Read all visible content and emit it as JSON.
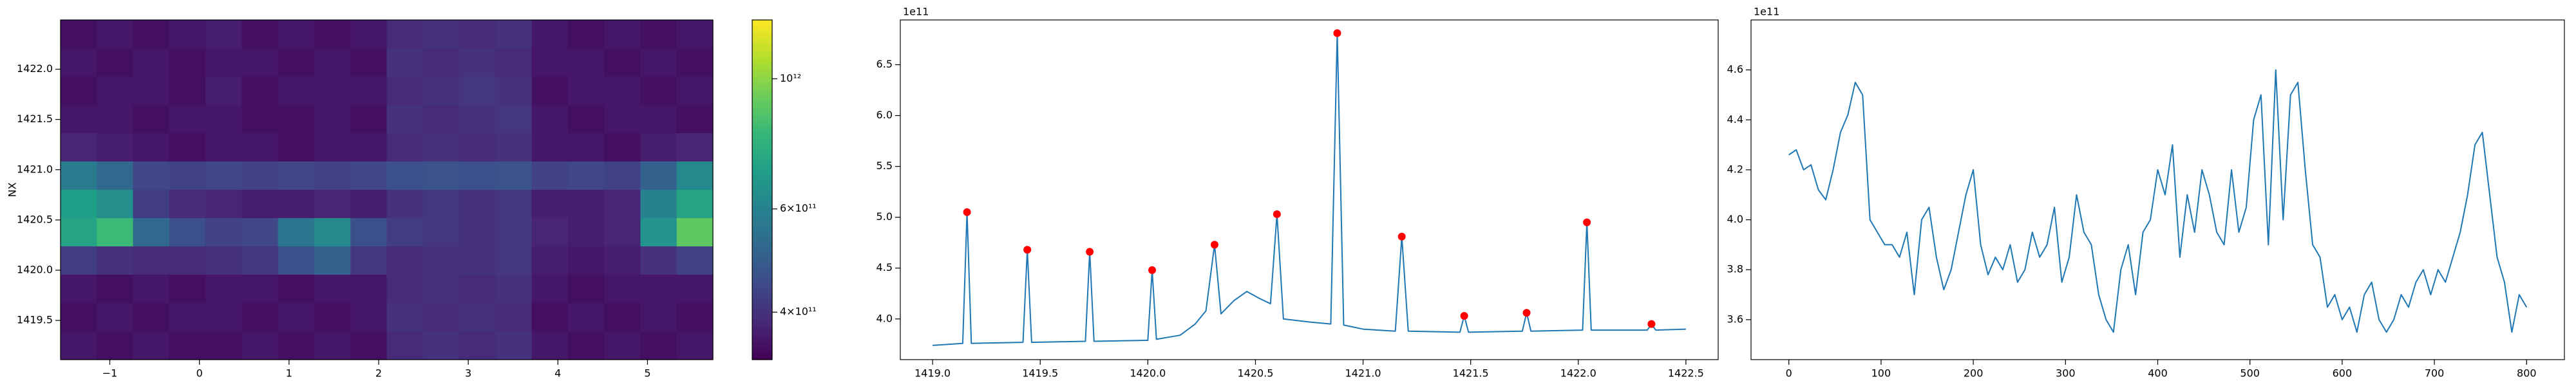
{
  "chart_data": [
    {
      "type": "heatmap",
      "ylabel": "NX",
      "colormap": "viridis",
      "color_scale": "log",
      "xlim": [
        -1.55,
        5.73
      ],
      "ylim": [
        1419.11,
        1422.49
      ],
      "xticks": [
        {
          "value": -1,
          "label": "−1"
        },
        0,
        1,
        2,
        3,
        4,
        5
      ],
      "yticks": [
        1419.5,
        {
          "value": 1420.0,
          "label": "1420.0"
        },
        1420.5,
        {
          "value": 1421.0,
          "label": "1421.0"
        },
        1421.5,
        {
          "value": 1422.0,
          "label": "1422.0"
        }
      ],
      "zlim": [
        332000000000.0,
        1260000000000.0
      ],
      "zticks": [
        {
          "value": 400000000000.0,
          "label": "4×10¹¹"
        },
        {
          "value": 600000000000.0,
          "label": "6×10¹¹"
        },
        {
          "value": 1000000000000.0,
          "label": "10¹²"
        }
      ],
      "z": [
        [
          350000000000.0,
          360000000000.0,
          350000000000.0,
          360000000000.0,
          370000000000.0,
          350000000000.0,
          360000000000.0,
          350000000000.0,
          360000000000.0,
          390000000000.0,
          400000000000.0,
          390000000000.0,
          400000000000.0,
          360000000000.0,
          350000000000.0,
          360000000000.0,
          350000000000.0,
          360000000000.0
        ],
        [
          360000000000.0,
          350000000000.0,
          360000000000.0,
          350000000000.0,
          360000000000.0,
          360000000000.0,
          350000000000.0,
          360000000000.0,
          350000000000.0,
          400000000000.0,
          390000000000.0,
          400000000000.0,
          390000000000.0,
          360000000000.0,
          360000000000.0,
          350000000000.0,
          360000000000.0,
          350000000000.0
        ],
        [
          350000000000.0,
          360000000000.0,
          360000000000.0,
          350000000000.0,
          370000000000.0,
          350000000000.0,
          360000000000.0,
          360000000000.0,
          360000000000.0,
          390000000000.0,
          400000000000.0,
          410000000000.0,
          400000000000.0,
          350000000000.0,
          360000000000.0,
          360000000000.0,
          350000000000.0,
          360000000000.0
        ],
        [
          360000000000.0,
          360000000000.0,
          350000000000.0,
          360000000000.0,
          360000000000.0,
          350000000000.0,
          350000000000.0,
          360000000000.0,
          350000000000.0,
          400000000000.0,
          390000000000.0,
          400000000000.0,
          410000000000.0,
          360000000000.0,
          350000000000.0,
          360000000000.0,
          360000000000.0,
          350000000000.0
        ],
        [
          380000000000.0,
          370000000000.0,
          360000000000.0,
          350000000000.0,
          360000000000.0,
          360000000000.0,
          350000000000.0,
          360000000000.0,
          360000000000.0,
          390000000000.0,
          400000000000.0,
          390000000000.0,
          400000000000.0,
          360000000000.0,
          360000000000.0,
          350000000000.0,
          370000000000.0,
          380000000000.0
        ],
        [
          580000000000.0,
          520000000000.0,
          440000000000.0,
          430000000000.0,
          440000000000.0,
          430000000000.0,
          440000000000.0,
          430000000000.0,
          440000000000.0,
          460000000000.0,
          470000000000.0,
          460000000000.0,
          470000000000.0,
          430000000000.0,
          440000000000.0,
          430000000000.0,
          500000000000.0,
          620000000000.0
        ],
        [
          700000000000.0,
          640000000000.0,
          420000000000.0,
          390000000000.0,
          380000000000.0,
          370000000000.0,
          370000000000.0,
          380000000000.0,
          370000000000.0,
          400000000000.0,
          410000000000.0,
          400000000000.0,
          410000000000.0,
          370000000000.0,
          370000000000.0,
          380000000000.0,
          600000000000.0,
          720000000000.0
        ],
        [
          720000000000.0,
          820000000000.0,
          520000000000.0,
          460000000000.0,
          430000000000.0,
          440000000000.0,
          560000000000.0,
          620000000000.0,
          460000000000.0,
          420000000000.0,
          410000000000.0,
          400000000000.0,
          410000000000.0,
          380000000000.0,
          370000000000.0,
          380000000000.0,
          660000000000.0,
          900000000000.0
        ],
        [
          420000000000.0,
          400000000000.0,
          390000000000.0,
          390000000000.0,
          400000000000.0,
          410000000000.0,
          460000000000.0,
          500000000000.0,
          410000000000.0,
          390000000000.0,
          400000000000.0,
          400000000000.0,
          410000000000.0,
          370000000000.0,
          360000000000.0,
          370000000000.0,
          400000000000.0,
          430000000000.0
        ],
        [
          360000000000.0,
          350000000000.0,
          360000000000.0,
          350000000000.0,
          360000000000.0,
          360000000000.0,
          350000000000.0,
          360000000000.0,
          360000000000.0,
          390000000000.0,
          400000000000.0,
          390000000000.0,
          400000000000.0,
          360000000000.0,
          350000000000.0,
          360000000000.0,
          360000000000.0,
          360000000000.0
        ],
        [
          350000000000.0,
          360000000000.0,
          350000000000.0,
          360000000000.0,
          360000000000.0,
          350000000000.0,
          360000000000.0,
          350000000000.0,
          360000000000.0,
          400000000000.0,
          390000000000.0,
          400000000000.0,
          390000000000.0,
          350000000000.0,
          360000000000.0,
          350000000000.0,
          360000000000.0,
          350000000000.0
        ],
        [
          360000000000.0,
          350000000000.0,
          360000000000.0,
          350000000000.0,
          350000000000.0,
          360000000000.0,
          350000000000.0,
          360000000000.0,
          350000000000.0,
          390000000000.0,
          400000000000.0,
          390000000000.0,
          400000000000.0,
          360000000000.0,
          350000000000.0,
          360000000000.0,
          350000000000.0,
          360000000000.0
        ]
      ]
    },
    {
      "type": "line",
      "offset_label": "1e11",
      "xlim": [
        1418.85,
        1422.65
      ],
      "ylim": [
        3.6,
        6.94
      ],
      "xticks": [
        {
          "value": 1419.0,
          "label": "1419.0"
        },
        1419.5,
        {
          "value": 1420.0,
          "label": "1420.0"
        },
        1420.5,
        {
          "value": 1421.0,
          "label": "1421.0"
        },
        1421.5,
        {
          "value": 1422.0,
          "label": "1422.0"
        },
        1422.5
      ],
      "yticks": [
        {
          "value": 4.0,
          "label": "4.0"
        },
        4.5,
        {
          "value": 5.0,
          "label": "5.0"
        },
        5.5,
        {
          "value": 6.0,
          "label": "6.0"
        },
        6.5
      ],
      "series": [
        {
          "color": "#1f77b4",
          "x": [
            1419.0,
            1419.14,
            1419.16,
            1419.18,
            1419.42,
            1419.44,
            1419.46,
            1419.71,
            1419.73,
            1419.75,
            1420.0,
            1420.02,
            1420.04,
            1420.15,
            1420.22,
            1420.27,
            1420.31,
            1420.34,
            1420.4,
            1420.46,
            1420.52,
            1420.57,
            1420.6,
            1420.63,
            1420.75,
            1420.85,
            1420.88,
            1420.91,
            1421.0,
            1421.15,
            1421.18,
            1421.21,
            1421.45,
            1421.47,
            1421.49,
            1421.74,
            1421.76,
            1421.78,
            1422.02,
            1422.04,
            1422.06,
            1422.32,
            1422.34,
            1422.36,
            1422.5
          ],
          "values": [
            3.74,
            3.76,
            5.05,
            3.76,
            3.77,
            4.68,
            3.77,
            3.78,
            4.66,
            3.78,
            3.79,
            4.48,
            3.8,
            3.84,
            3.95,
            4.08,
            4.73,
            4.05,
            4.18,
            4.27,
            4.2,
            4.15,
            5.03,
            4.0,
            3.97,
            3.95,
            6.81,
            3.94,
            3.9,
            3.88,
            4.81,
            3.88,
            3.87,
            4.03,
            3.87,
            3.88,
            4.06,
            3.88,
            3.89,
            4.95,
            3.89,
            3.89,
            3.95,
            3.89,
            3.9
          ]
        },
        {
          "color": "#ff0000",
          "marker": "circle",
          "x": [
            1419.16,
            1419.44,
            1419.73,
            1420.02,
            1420.31,
            1420.6,
            1420.88,
            1421.18,
            1421.47,
            1421.76,
            1422.04,
            1422.34
          ],
          "values": [
            5.05,
            4.68,
            4.66,
            4.48,
            4.73,
            5.03,
            6.81,
            4.81,
            4.03,
            4.06,
            4.95,
            3.95
          ]
        }
      ]
    },
    {
      "type": "line",
      "offset_label": "1e11",
      "xlim": [
        -41,
        841
      ],
      "ylim": [
        3.44,
        4.8
      ],
      "xticks": [
        0,
        100,
        200,
        300,
        400,
        500,
        600,
        700,
        800
      ],
      "yticks": [
        3.6,
        3.8,
        {
          "value": 4.0,
          "label": "4.0"
        },
        4.2,
        4.4,
        4.6
      ],
      "x": [
        0,
        8,
        16,
        24,
        32,
        40,
        48,
        56,
        64,
        72,
        80,
        88,
        96,
        104,
        112,
        120,
        128,
        136,
        144,
        152,
        160,
        168,
        176,
        184,
        192,
        200,
        208,
        216,
        224,
        232,
        240,
        248,
        256,
        264,
        272,
        280,
        288,
        296,
        304,
        312,
        320,
        328,
        336,
        344,
        352,
        360,
        368,
        376,
        384,
        392,
        400,
        408,
        416,
        424,
        432,
        440,
        448,
        456,
        464,
        472,
        480,
        488,
        496,
        504,
        512,
        520,
        528,
        536,
        544,
        552,
        560,
        568,
        576,
        584,
        592,
        600,
        608,
        616,
        624,
        632,
        640,
        648,
        656,
        664,
        672,
        680,
        688,
        696,
        704,
        712,
        720,
        728,
        736,
        744,
        752,
        760,
        768,
        776,
        784,
        792,
        800
      ],
      "series": [
        {
          "color": "#1f77b4",
          "values": [
            4.26,
            4.28,
            4.2,
            4.22,
            4.12,
            4.08,
            4.2,
            4.35,
            4.42,
            4.55,
            4.5,
            4.0,
            3.95,
            3.9,
            3.9,
            3.85,
            3.95,
            3.7,
            4.0,
            4.05,
            3.85,
            3.72,
            3.8,
            3.95,
            4.1,
            4.2,
            3.9,
            3.78,
            3.85,
            3.8,
            3.9,
            3.75,
            3.8,
            3.95,
            3.85,
            3.9,
            4.05,
            3.75,
            3.85,
            4.1,
            3.95,
            3.9,
            3.7,
            3.6,
            3.55,
            3.8,
            3.9,
            3.7,
            3.95,
            4.0,
            4.2,
            4.1,
            4.3,
            3.85,
            4.1,
            3.95,
            4.2,
            4.1,
            3.95,
            3.9,
            4.2,
            3.95,
            4.05,
            4.4,
            4.5,
            3.9,
            4.6,
            4.0,
            4.5,
            4.55,
            4.2,
            3.9,
            3.85,
            3.65,
            3.7,
            3.6,
            3.65,
            3.55,
            3.7,
            3.75,
            3.6,
            3.55,
            3.6,
            3.7,
            3.65,
            3.75,
            3.8,
            3.7,
            3.8,
            3.75,
            3.85,
            3.95,
            4.1,
            4.3,
            4.35,
            4.1,
            3.85,
            3.75,
            3.55,
            3.7,
            3.65
          ]
        }
      ]
    }
  ]
}
